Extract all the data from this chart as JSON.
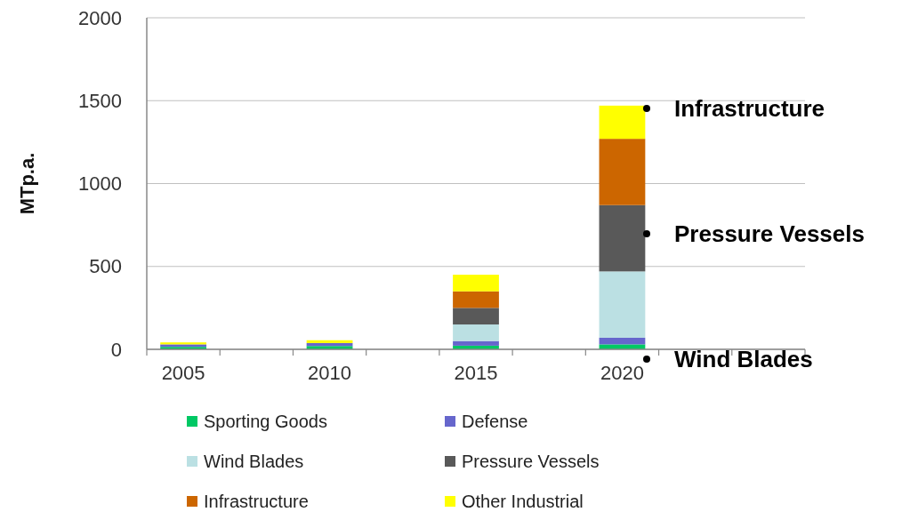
{
  "chart_data": {
    "type": "bar",
    "stacked": true,
    "ylabel": "MTp.a.",
    "categories": [
      "2005",
      null,
      "2010",
      null,
      "2015",
      null,
      "2020",
      null,
      null
    ],
    "series": [
      {
        "name": "Sporting Goods",
        "color": "#00c864",
        "values": [
          15,
          null,
          20,
          null,
          22,
          null,
          30,
          null,
          null
        ]
      },
      {
        "name": "Defense",
        "color": "#6666cc",
        "values": [
          15,
          null,
          18,
          null,
          28,
          null,
          40,
          null,
          null
        ]
      },
      {
        "name": "Wind Blades",
        "color": "#bbe0e3",
        "values": [
          0,
          null,
          0,
          null,
          100,
          null,
          400,
          null,
          null
        ]
      },
      {
        "name": "Pressure Vessels",
        "color": "#595959",
        "values": [
          0,
          null,
          0,
          null,
          100,
          null,
          400,
          null,
          null
        ]
      },
      {
        "name": "Infrastructure",
        "color": "#cc6600",
        "values": [
          0,
          null,
          0,
          null,
          100,
          null,
          400,
          null,
          null
        ]
      },
      {
        "name": "Other Industrial",
        "color": "#ffff00",
        "values": [
          12,
          null,
          17,
          null,
          100,
          null,
          200,
          null,
          null
        ]
      }
    ],
    "ylim": [
      0,
      2000
    ],
    "yticks": [
      0,
      500,
      1000,
      1500,
      2000
    ],
    "grid": "y",
    "legend": "bottom",
    "annotations": [
      "Infrastructure",
      "Pressure Vessels",
      "Wind Blades"
    ]
  }
}
